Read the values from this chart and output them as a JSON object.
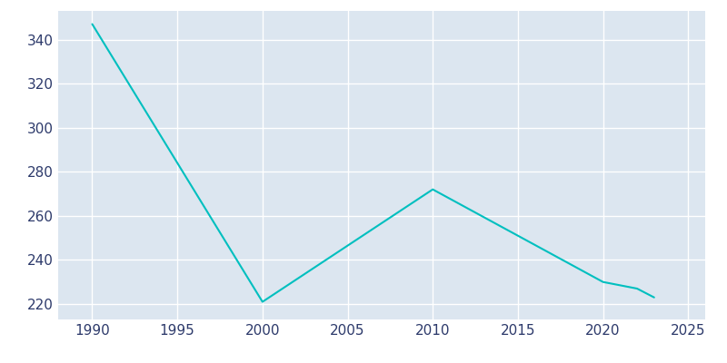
{
  "years": [
    1990,
    2000,
    2010,
    2020,
    2022,
    2023
  ],
  "population": [
    347,
    221,
    272,
    230,
    227,
    223
  ],
  "line_color": "#00BFBF",
  "plot_bg_color": "#DCE6F0",
  "fig_bg_color": "#FFFFFF",
  "grid_color": "#FFFFFF",
  "text_color": "#2D3A6B",
  "xlim": [
    1988,
    2026
  ],
  "ylim": [
    213,
    353
  ],
  "xticks": [
    1990,
    1995,
    2000,
    2005,
    2010,
    2015,
    2020,
    2025
  ],
  "yticks": [
    220,
    240,
    260,
    280,
    300,
    320,
    340
  ],
  "linewidth": 1.5,
  "tick_fontsize": 11
}
